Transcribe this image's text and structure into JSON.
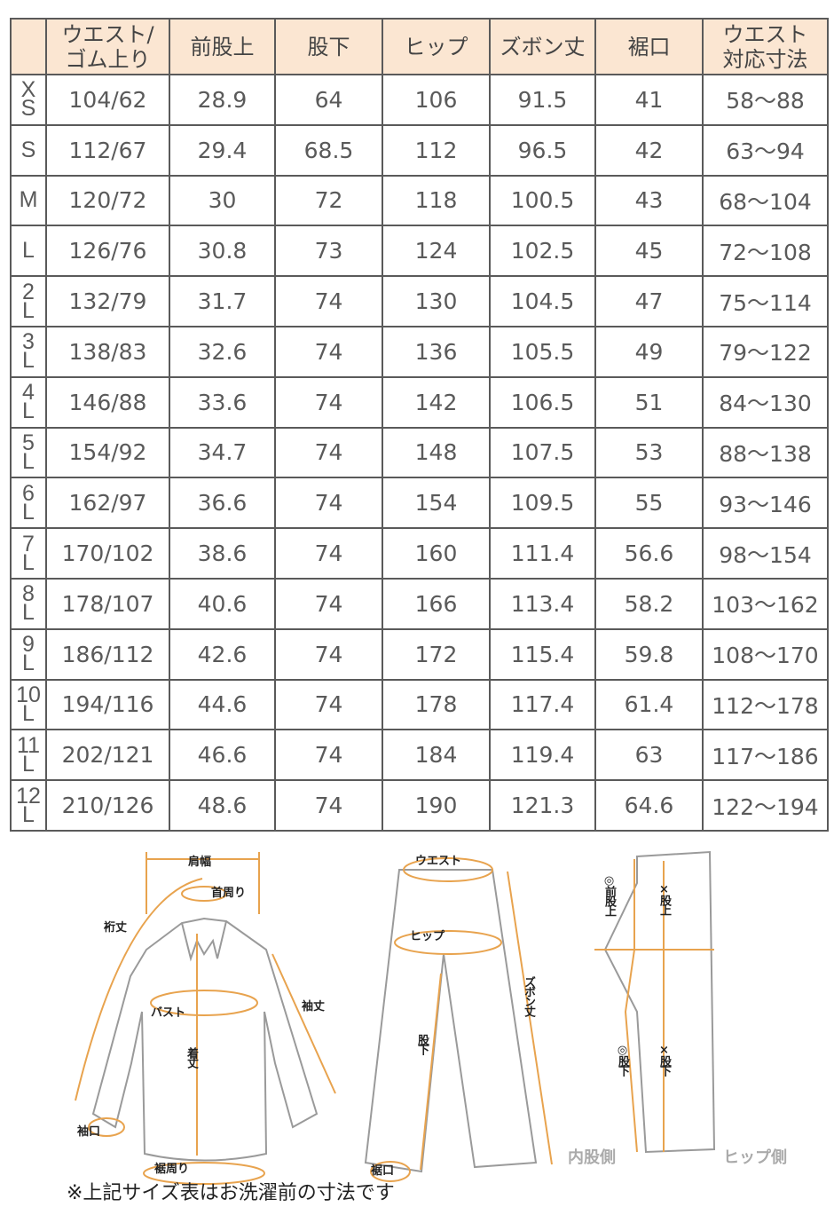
{
  "table": {
    "headers": [
      "",
      "ウエスト/\nゴム上り",
      "前股上",
      "股下",
      "ヒップ",
      "ズボン丈",
      "裾口",
      "ウエスト\n対応寸法"
    ],
    "rows": [
      {
        "size": [
          "X",
          "S"
        ],
        "values": [
          "104/62",
          "28.9",
          "64",
          "106",
          "91.5",
          "41",
          "58～88"
        ]
      },
      {
        "size": [
          "S"
        ],
        "values": [
          "112/67",
          "29.4",
          "68.5",
          "112",
          "96.5",
          "42",
          "63～94"
        ]
      },
      {
        "size": [
          "M"
        ],
        "values": [
          "120/72",
          "30",
          "72",
          "118",
          "100.5",
          "43",
          "68～104"
        ]
      },
      {
        "size": [
          "L"
        ],
        "values": [
          "126/76",
          "30.8",
          "73",
          "124",
          "102.5",
          "45",
          "72～108"
        ]
      },
      {
        "size": [
          "2",
          "L"
        ],
        "values": [
          "132/79",
          "31.7",
          "74",
          "130",
          "104.5",
          "47",
          "75～114"
        ]
      },
      {
        "size": [
          "3",
          "L"
        ],
        "values": [
          "138/83",
          "32.6",
          "74",
          "136",
          "105.5",
          "49",
          "79～122"
        ]
      },
      {
        "size": [
          "4",
          "L"
        ],
        "values": [
          "146/88",
          "33.6",
          "74",
          "142",
          "106.5",
          "51",
          "84～130"
        ]
      },
      {
        "size": [
          "5",
          "L"
        ],
        "values": [
          "154/92",
          "34.7",
          "74",
          "148",
          "107.5",
          "53",
          "88～138"
        ]
      },
      {
        "size": [
          "6",
          "L"
        ],
        "values": [
          "162/97",
          "36.6",
          "74",
          "154",
          "109.5",
          "55",
          "93～146"
        ]
      },
      {
        "size": [
          "7",
          "L"
        ],
        "values": [
          "170/102",
          "38.6",
          "74",
          "160",
          "111.4",
          "56.6",
          "98～154"
        ]
      },
      {
        "size": [
          "8",
          "L"
        ],
        "values": [
          "178/107",
          "40.6",
          "74",
          "166",
          "113.4",
          "58.2",
          "103～162"
        ]
      },
      {
        "size": [
          "9",
          "L"
        ],
        "values": [
          "186/112",
          "42.6",
          "74",
          "172",
          "115.4",
          "59.8",
          "108～170"
        ]
      },
      {
        "size": [
          "10",
          "L"
        ],
        "values": [
          "194/116",
          "44.6",
          "74",
          "178",
          "117.4",
          "61.4",
          "112～178"
        ]
      },
      {
        "size": [
          "11",
          "L"
        ],
        "values": [
          "202/121",
          "46.6",
          "74",
          "184",
          "119.4",
          "63",
          "117～186"
        ]
      },
      {
        "size": [
          "12",
          "L"
        ],
        "values": [
          "210/126",
          "48.6",
          "74",
          "190",
          "121.3",
          "64.6",
          "122～194"
        ]
      }
    ]
  },
  "diagram": {
    "shirt": {
      "shoulder": "肩幅",
      "neck": "首周り",
      "yuki": "裄丈",
      "sleeve": "袖丈",
      "bust": "バスト",
      "length": "着丈",
      "cuff": "袖口",
      "hem": "裾周り"
    },
    "pants": {
      "waist": "ウエスト",
      "hip": "ヒップ",
      "length": "ズボン丈",
      "inseam": "股下",
      "hem": "裾口"
    },
    "side": {
      "front_rise": "◎前股上",
      "rise": "×股上",
      "inseam_ok": "◎股下",
      "inseam_ng": "×股下",
      "inner": "内股側",
      "hip_side": "ヒップ側"
    },
    "colors": {
      "measure": "#e8a34e",
      "outline": "#9a9a9a"
    }
  },
  "note": "※上記サイズ表はお洗濯前の寸法です"
}
